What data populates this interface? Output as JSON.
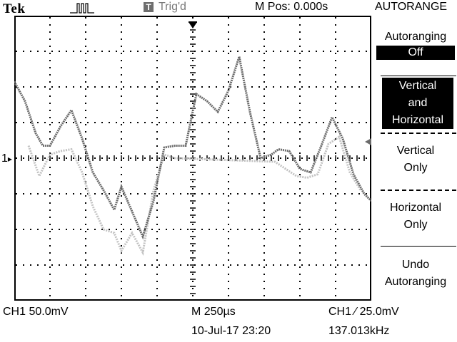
{
  "header": {
    "brand": "Tek",
    "trigger_badge": "T",
    "trigger_status": "Trig'd",
    "main_position": "M Pos: 0.000s",
    "menu_title": "AUTORANGE"
  },
  "side_menu": {
    "autoranging_label": "Autoranging",
    "autoranging_value": "Off",
    "vert_horiz_line1": "Vertical",
    "vert_horiz_line2": "and",
    "vert_horiz_line3": "Horizontal",
    "vertical_only_line1": "Vertical",
    "vertical_only_line2": "Only",
    "horizontal_only_line1": "Horizontal",
    "horizontal_only_line2": "Only",
    "undo_line1": "Undo",
    "undo_line2": "Autoranging"
  },
  "footer": {
    "ch1_scale": "CH1  50.0mV",
    "time_scale": "M 250µs",
    "trigger_level": "CH1  ∕  25.0mV",
    "date_time": "10-Jul-17 23:20",
    "frequency": "137.013kHz"
  },
  "channel_marker": "1",
  "colors": {
    "trace_ch1": "#6a6a6a",
    "trace_ref": "#c2c2c2",
    "graticule": "#000000"
  },
  "chart_data": {
    "type": "line",
    "x_divisions": 10,
    "y_divisions": 8,
    "ylim": [
      -4,
      4
    ],
    "xlim": [
      0,
      10
    ],
    "grid": true,
    "series": [
      {
        "x": [
          0,
          0.3,
          0.6,
          0.8,
          1.0,
          1.3,
          1.6,
          1.9,
          2.2,
          2.5,
          2.8,
          3.0,
          3.3,
          3.6,
          3.9,
          4.2,
          4.5,
          4.8,
          5.1,
          5.4,
          5.7,
          6.0,
          6.3,
          6.6,
          6.9,
          7.2,
          7.4,
          7.7,
          8.0,
          8.3,
          8.6,
          8.9,
          9.2,
          9.5,
          9.8,
          10.0
        ],
        "y": [
          2.15,
          1.6,
          0.7,
          0.35,
          0.35,
          0.9,
          1.35,
          0.55,
          -0.4,
          -0.9,
          -1.45,
          -0.8,
          -1.5,
          -2.2,
          -1.2,
          0.3,
          0.35,
          0.35,
          1.8,
          1.6,
          1.3,
          1.9,
          2.85,
          1.3,
          0.0,
          0.1,
          0.25,
          0.2,
          -0.3,
          -0.4,
          0.35,
          1.15,
          0.55,
          -0.45,
          -1.0,
          -1.2
        ]
      },
      {
        "x": [
          0.4,
          0.7,
          1.0,
          1.3,
          1.6,
          1.9,
          2.2,
          2.5,
          2.8,
          3.0,
          3.3,
          3.6,
          3.9,
          4.2,
          4.5,
          7.3,
          7.6,
          7.9,
          8.2,
          8.5,
          8.8,
          9.1,
          9.4,
          9.7
        ],
        "y": [
          0.35,
          -0.5,
          0.1,
          0.2,
          0.25,
          -0.4,
          -1.35,
          -2.0,
          -2.1,
          -2.6,
          -2.1,
          -2.65,
          -0.9,
          0.1,
          0.0,
          -0.1,
          -0.3,
          -0.5,
          -0.55,
          -0.45,
          0.4,
          0.6,
          -0.4,
          -0.9
        ]
      }
    ]
  }
}
